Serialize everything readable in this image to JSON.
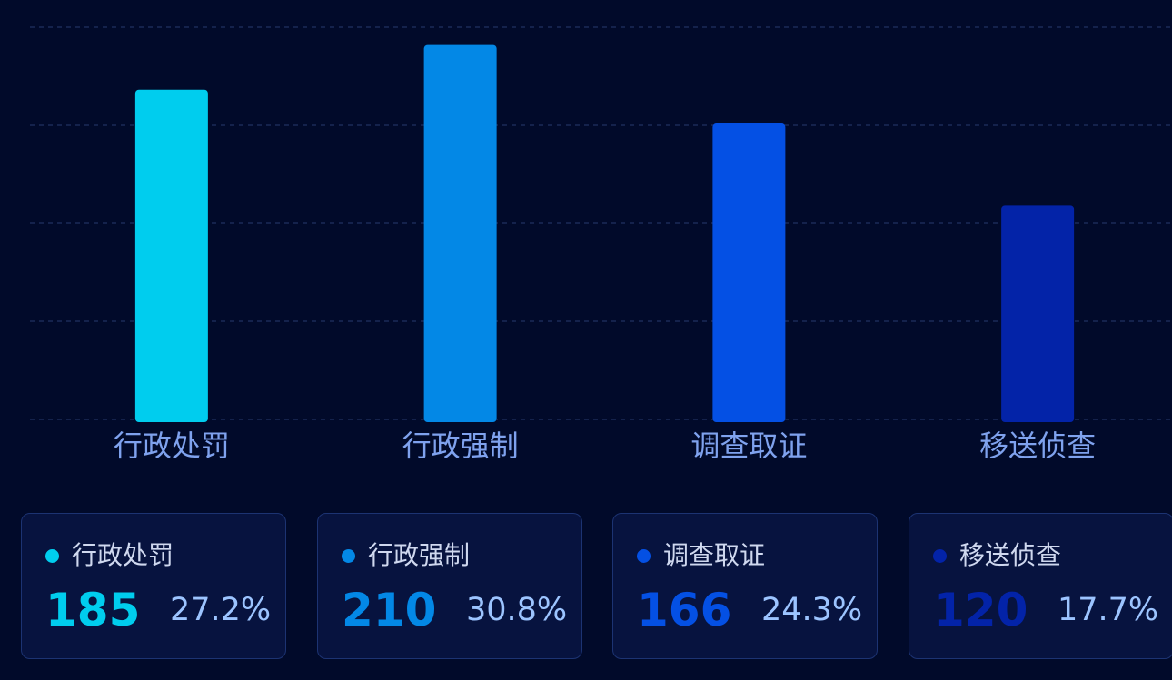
{
  "chart_data": {
    "type": "bar",
    "categories": [
      "行政处罚",
      "行政强制",
      "调查取证",
      "移送侦查"
    ],
    "values": [
      185,
      210,
      166,
      120
    ],
    "colors": [
      "#00cdee",
      "#0388e6",
      "#0450e4",
      "#0323a8"
    ],
    "ylim": [
      0,
      220
    ],
    "grid": true,
    "legend": "none"
  },
  "cards": [
    {
      "label": "行政处罚",
      "count": "185",
      "percent": "27.2%",
      "color": "#00cdee"
    },
    {
      "label": "行政强制",
      "count": "210",
      "percent": "30.8%",
      "color": "#0388e6"
    },
    {
      "label": "调查取证",
      "count": "166",
      "percent": "24.3%",
      "color": "#0450e4"
    },
    {
      "label": "移送侦查",
      "count": "120",
      "percent": "17.7%",
      "color": "#0323a8"
    }
  ],
  "theme": {
    "background": "#010a2a",
    "card_background": "#07133f",
    "card_border": "#1c3372",
    "axis_label_color": "#7fa2ee",
    "percent_color": "#9cc4ff"
  }
}
